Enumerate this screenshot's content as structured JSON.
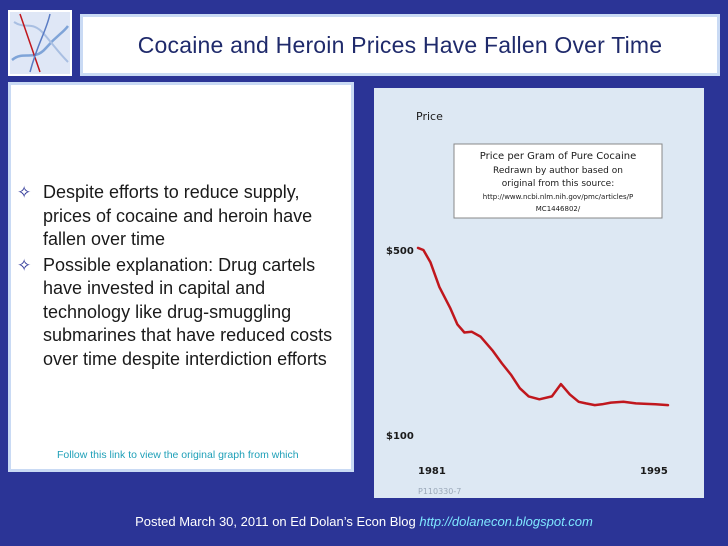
{
  "title": "Cocaine and Heroin Prices Have Fallen Over Time",
  "bullets": [
    "Despite efforts to reduce supply, prices of cocaine and heroin have fallen over time",
    "Possible explanation: Drug cartels have invested in capital and technology like drug-smuggling submarines that have reduced costs over time despite interdiction efforts"
  ],
  "bullet_icon": "diamond-bullet-icon",
  "follow_link_text": "Follow this link to view the original graph from which",
  "footer": {
    "text": "Posted March 30, 2011 on Ed Dolan’s Econ Blog",
    "link": "http://dolanecon.blogspot.com"
  },
  "colors": {
    "background": "#2b3496",
    "title_text": "#1f2a6b",
    "chart_panel": "#dde8f3",
    "series_line": "#c0171d",
    "link": "#7ee6ff"
  },
  "chart_data": {
    "type": "line",
    "ylabel": "Price",
    "box_title": "Price per Gram of Pure Cocaine",
    "box_lines": [
      "Redrawn by author based on",
      "original from this source:",
      "http://www.ncbi.nlm.nih.gov/pmc/articles/P",
      "MC1446802/"
    ],
    "y_ticks": [
      "$500",
      "$100"
    ],
    "x_ticks": [
      "1981",
      "1995"
    ],
    "footnote": "P110330-7",
    "xlim": [
      1981,
      1995
    ],
    "ylim": [
      100,
      500
    ],
    "series": [
      {
        "x": [
          1981,
          1981.3,
          1981.7,
          1982.2,
          1982.8,
          1983.2,
          1983.6,
          1984,
          1984.5,
          1985.2,
          1985.7,
          1986.2,
          1986.7,
          1987.2,
          1987.8,
          1988.5,
          1989,
          1989.5,
          1990,
          1990.4,
          1990.9,
          1991.3,
          1991.8,
          1992.5,
          1993.2,
          1993.8,
          1994.3,
          1994.7,
          1995
        ],
        "y": [
          505,
          500,
          470,
          410,
          360,
          320,
          300,
          302,
          290,
          255,
          225,
          198,
          165,
          145,
          138,
          145,
          175,
          150,
          132,
          128,
          124,
          126,
          130,
          132,
          128,
          127,
          126,
          125,
          124
        ]
      }
    ]
  }
}
